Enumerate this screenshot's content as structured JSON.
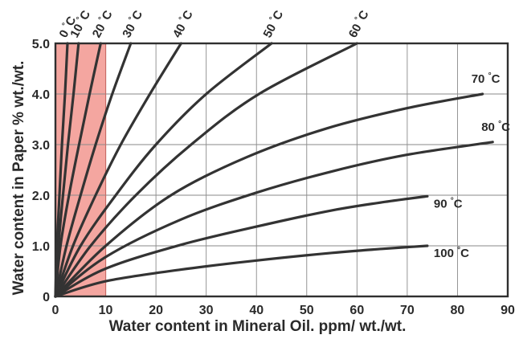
{
  "chart_data": {
    "type": "line",
    "title": "",
    "xlabel": "Water content in Mineral Oil. ppm/ wt./wt.",
    "ylabel": "Water content in Paper % wt./wt.",
    "xlim": [
      0,
      90
    ],
    "ylim": [
      0,
      5
    ],
    "grid": true,
    "x_ticks": [
      "0",
      "10",
      "20",
      "30",
      "40",
      "50",
      "60",
      "70",
      "80",
      "90"
    ],
    "y_ticks": [
      "0",
      "1.0",
      "2.0",
      "3.0",
      "4.0",
      "5.0"
    ],
    "highlight_region": {
      "x": [
        0,
        10
      ],
      "color": "#f4a6a0"
    },
    "label_unit": "°C",
    "series": [
      {
        "name": "0",
        "points": [
          [
            0,
            0
          ],
          [
            0.3,
            1.0
          ],
          [
            0.8,
            2.0
          ],
          [
            1.3,
            3.0
          ],
          [
            1.9,
            4.0
          ],
          [
            2.4,
            5.0
          ]
        ]
      },
      {
        "name": "10",
        "points": [
          [
            0,
            0
          ],
          [
            0.6,
            1.0
          ],
          [
            1.5,
            2.0
          ],
          [
            2.5,
            3.0
          ],
          [
            3.6,
            4.0
          ],
          [
            4.6,
            5.0
          ]
        ]
      },
      {
        "name": "20",
        "points": [
          [
            0,
            0
          ],
          [
            1.0,
            1.0
          ],
          [
            2.7,
            2.0
          ],
          [
            4.7,
            3.0
          ],
          [
            6.8,
            4.0
          ],
          [
            9.0,
            5.0
          ]
        ]
      },
      {
        "name": "30",
        "points": [
          [
            0,
            0
          ],
          [
            2.2,
            1.0
          ],
          [
            5.0,
            2.0
          ],
          [
            8.0,
            3.0
          ],
          [
            11.3,
            4.0
          ],
          [
            15.0,
            5.0
          ]
        ]
      },
      {
        "name": "40",
        "points": [
          [
            0,
            0
          ],
          [
            3.5,
            1.0
          ],
          [
            8.0,
            2.0
          ],
          [
            13.0,
            3.0
          ],
          [
            18.8,
            4.0
          ],
          [
            25.0,
            5.0
          ]
        ]
      },
      {
        "name": "50",
        "points": [
          [
            0,
            0
          ],
          [
            5.0,
            1.0
          ],
          [
            12.0,
            2.0
          ],
          [
            20.0,
            3.0
          ],
          [
            30.0,
            4.0
          ],
          [
            43.0,
            5.0
          ]
        ]
      },
      {
        "name": "60",
        "points": [
          [
            0,
            0
          ],
          [
            7.0,
            1.0
          ],
          [
            16.0,
            2.0
          ],
          [
            27.0,
            3.0
          ],
          [
            40.5,
            4.0
          ],
          [
            60.0,
            5.0
          ]
        ]
      },
      {
        "name": "70",
        "points": [
          [
            0,
            0
          ],
          [
            10.0,
            1.0
          ],
          [
            23.0,
            2.0
          ],
          [
            38.0,
            2.75
          ],
          [
            54.0,
            3.32
          ],
          [
            70.0,
            3.72
          ],
          [
            85.0,
            4.0
          ]
        ]
      },
      {
        "name": "80",
        "points": [
          [
            0,
            0
          ],
          [
            10.0,
            0.78
          ],
          [
            25.0,
            1.52
          ],
          [
            40.0,
            2.05
          ],
          [
            55.0,
            2.47
          ],
          [
            70.0,
            2.8
          ],
          [
            87.0,
            3.05
          ]
        ]
      },
      {
        "name": "90",
        "points": [
          [
            0,
            0
          ],
          [
            10.0,
            0.55
          ],
          [
            25.0,
            1.02
          ],
          [
            40.0,
            1.38
          ],
          [
            55.0,
            1.7
          ],
          [
            65.0,
            1.86
          ],
          [
            74.0,
            1.98
          ]
        ]
      },
      {
        "name": "100",
        "points": [
          [
            0,
            0
          ],
          [
            10.0,
            0.3
          ],
          [
            25.0,
            0.53
          ],
          [
            40.0,
            0.71
          ],
          [
            55.0,
            0.86
          ],
          [
            65.0,
            0.94
          ],
          [
            74.0,
            1.0
          ]
        ]
      }
    ]
  }
}
